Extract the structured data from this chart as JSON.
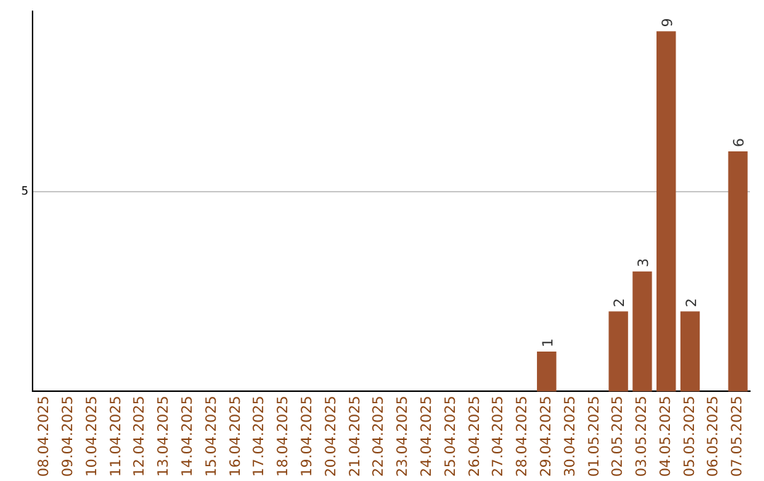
{
  "chart_data": {
    "type": "bar",
    "categories": [
      "08.04.2025",
      "09.04.2025",
      "10.04.2025",
      "11.04.2025",
      "12.04.2025",
      "13.04.2025",
      "14.04.2025",
      "15.04.2025",
      "16.04.2025",
      "17.04.2025",
      "18.04.2025",
      "19.04.2025",
      "20.04.2025",
      "21.04.2025",
      "22.04.2025",
      "23.04.2025",
      "24.04.2025",
      "25.04.2025",
      "26.04.2025",
      "27.04.2025",
      "28.04.2025",
      "29.04.2025",
      "30.04.2025",
      "01.05.2025",
      "02.05.2025",
      "03.05.2025",
      "04.05.2025",
      "05.05.2025",
      "06.05.2025",
      "07.05.2025"
    ],
    "values": [
      null,
      null,
      null,
      null,
      null,
      null,
      null,
      null,
      null,
      null,
      null,
      null,
      null,
      null,
      null,
      null,
      null,
      null,
      null,
      null,
      null,
      1,
      null,
      null,
      2,
      3,
      9,
      2,
      null,
      6
    ],
    "data_labels": true,
    "color": "#a0522d",
    "ylim": [
      0,
      9.5
    ],
    "yticks": [
      5
    ],
    "grid": "y",
    "legend": false
  }
}
